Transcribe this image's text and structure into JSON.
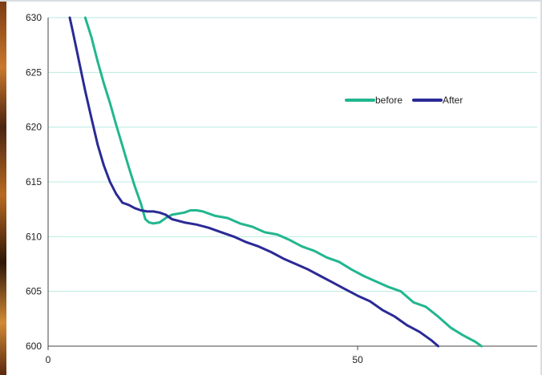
{
  "chart_data": {
    "type": "line",
    "title": "",
    "xlabel": "",
    "ylabel": "",
    "xlim": [
      0,
      79
    ],
    "ylim": [
      600,
      630
    ],
    "x_ticks": [
      0,
      50
    ],
    "y_ticks": [
      600,
      605,
      610,
      615,
      620,
      625,
      630
    ],
    "grid": true,
    "legend_position": "top-right",
    "series": [
      {
        "name": "before",
        "color": "#22b68f",
        "points": [
          [
            6,
            630.0
          ],
          [
            7,
            628.2
          ],
          [
            8,
            626.0
          ],
          [
            9,
            624.0
          ],
          [
            10,
            622.2
          ],
          [
            11,
            620.2
          ],
          [
            12,
            618.3
          ],
          [
            13,
            616.4
          ],
          [
            14,
            614.6
          ],
          [
            15,
            613.0
          ],
          [
            15.7,
            611.6
          ],
          [
            16.3,
            611.3
          ],
          [
            17,
            611.2
          ],
          [
            18,
            611.3
          ],
          [
            19,
            611.7
          ],
          [
            20,
            612.0
          ],
          [
            22,
            612.2
          ],
          [
            23,
            612.4
          ],
          [
            24,
            612.4
          ],
          [
            25,
            612.3
          ],
          [
            27,
            611.9
          ],
          [
            29,
            611.7
          ],
          [
            31,
            611.2
          ],
          [
            33,
            610.9
          ],
          [
            35,
            610.4
          ],
          [
            37,
            610.2
          ],
          [
            39,
            609.7
          ],
          [
            41,
            609.1
          ],
          [
            43,
            608.7
          ],
          [
            45,
            608.1
          ],
          [
            47,
            607.7
          ],
          [
            49,
            607.0
          ],
          [
            51,
            606.4
          ],
          [
            53,
            605.9
          ],
          [
            55,
            605.4
          ],
          [
            57,
            605.0
          ],
          [
            59,
            604.0
          ],
          [
            61,
            603.6
          ],
          [
            63,
            602.7
          ],
          [
            65,
            601.7
          ],
          [
            67,
            601.0
          ],
          [
            69,
            600.4
          ],
          [
            70,
            600.0
          ]
        ]
      },
      {
        "name": "After",
        "color": "#2a2a96",
        "points": [
          [
            3.5,
            630.0
          ],
          [
            4,
            628.7
          ],
          [
            5,
            626.0
          ],
          [
            6,
            623.3
          ],
          [
            7,
            620.8
          ],
          [
            8,
            618.4
          ],
          [
            9,
            616.5
          ],
          [
            10,
            615.0
          ],
          [
            11,
            613.9
          ],
          [
            12,
            613.1
          ],
          [
            13,
            612.9
          ],
          [
            14,
            612.6
          ],
          [
            15,
            612.4
          ],
          [
            16,
            612.3
          ],
          [
            17,
            612.3
          ],
          [
            18,
            612.2
          ],
          [
            19,
            612.0
          ],
          [
            20,
            611.6
          ],
          [
            22,
            611.3
          ],
          [
            24,
            611.1
          ],
          [
            26,
            610.8
          ],
          [
            28,
            610.4
          ],
          [
            30,
            610.0
          ],
          [
            32,
            609.5
          ],
          [
            34,
            609.1
          ],
          [
            36,
            608.6
          ],
          [
            38,
            608.0
          ],
          [
            40,
            607.5
          ],
          [
            42,
            607.0
          ],
          [
            44,
            606.4
          ],
          [
            46,
            605.8
          ],
          [
            48,
            605.2
          ],
          [
            50,
            604.6
          ],
          [
            52,
            604.1
          ],
          [
            54,
            603.3
          ],
          [
            56,
            602.7
          ],
          [
            58,
            601.9
          ],
          [
            60,
            601.3
          ],
          [
            62,
            600.5
          ],
          [
            63,
            600.0
          ]
        ]
      }
    ]
  }
}
